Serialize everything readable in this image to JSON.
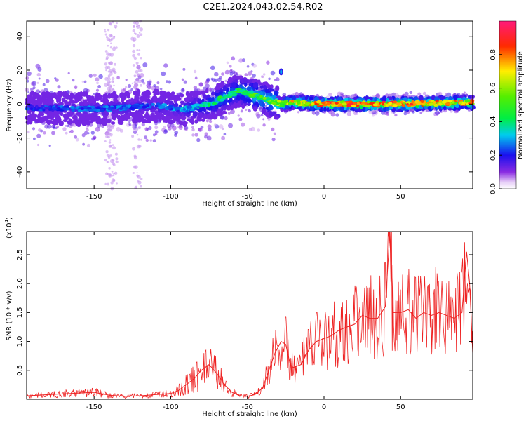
{
  "title": "C2E1.2024.043.02.54.R02",
  "colors": {
    "trace": "#ee2222",
    "axis": "#000000",
    "background": "#ffffff"
  },
  "chart_data": [
    {
      "type": "heatmap",
      "xlabel": "Height of straight line (km)",
      "ylabel": "Frequency (Hz)",
      "xlim": [
        -194,
        97
      ],
      "ylim": [
        -50,
        49
      ],
      "xticks": [
        -150,
        -100,
        -50,
        0,
        50
      ],
      "yticks": [
        -40,
        -20,
        0,
        20,
        40
      ],
      "colorbar": {
        "label": "Normalized spectral amplitude",
        "range": [
          0,
          1
        ],
        "ticks": [
          0.0,
          0.2,
          0.4,
          0.6,
          0.8
        ],
        "tick_labels": [
          "0.0",
          "0.2",
          "0.4",
          "0.6",
          "0.8"
        ],
        "colormap": "rainbow (white-violet-blue-cyan-green-yellow-red-magenta)"
      },
      "ridge": {
        "x": [
          -194,
          -150,
          -110,
          -90,
          -75,
          -65,
          -55,
          -45,
          -35,
          -28,
          -20,
          0,
          50,
          97
        ],
        "frequency": [
          -2,
          -3,
          -1,
          -3,
          0,
          4,
          8,
          5,
          2,
          0,
          1,
          0,
          0,
          1
        ],
        "amplitude": [
          0.25,
          0.3,
          0.3,
          0.35,
          0.45,
          0.5,
          0.5,
          0.6,
          0.62,
          0.7,
          0.8,
          0.95,
          0.95,
          0.85
        ]
      },
      "features": [
        {
          "x": -28,
          "frequency": 19,
          "amplitude": 0.3
        },
        {
          "x": -138,
          "frequency": 0,
          "amplitude": 0.05,
          "note": ""
        }
      ]
    },
    {
      "type": "line",
      "xlabel": "Height of straight line (km)",
      "ylabel": "SNR (10 * v/v)",
      "scale_label": "(x10",
      "scale_exponent": "4",
      "xlim": [
        -194,
        97
      ],
      "ylim": [
        0,
        2.9
      ],
      "xticks": [
        -150,
        -100,
        -50,
        0,
        50
      ],
      "yticks": [
        0.5,
        1.0,
        1.5,
        2.0,
        2.5
      ],
      "ytick_labels": [
        "0.5",
        "1.0",
        "1.5",
        "2.0",
        "2.5"
      ],
      "series": [
        {
          "x": [
            -194,
            -180,
            -165,
            -150,
            -140,
            -130,
            -120,
            -110,
            -100,
            -95,
            -90,
            -85,
            -80,
            -75,
            -70,
            -65,
            -60,
            -55,
            -50,
            -45,
            -40,
            -36,
            -32,
            -28,
            -25,
            -22,
            -20,
            -15,
            -10,
            -5,
            0,
            5,
            10,
            15,
            20,
            25,
            30,
            35,
            40,
            43,
            45,
            50,
            55,
            60,
            65,
            70,
            75,
            80,
            85,
            90,
            93,
            95,
            97
          ],
          "values": [
            0.06,
            0.08,
            0.1,
            0.12,
            0.07,
            0.05,
            0.06,
            0.08,
            0.1,
            0.15,
            0.25,
            0.35,
            0.5,
            0.6,
            0.45,
            0.25,
            0.12,
            0.06,
            0.05,
            0.08,
            0.2,
            0.5,
            0.8,
            1.0,
            0.95,
            0.6,
            0.55,
            0.6,
            0.85,
            1.0,
            1.05,
            1.1,
            1.2,
            1.25,
            1.3,
            1.45,
            1.4,
            1.4,
            1.6,
            2.9,
            1.5,
            1.5,
            1.55,
            1.4,
            1.5,
            1.45,
            1.5,
            1.45,
            1.4,
            1.5,
            2.55,
            2.0,
            0.8
          ]
        }
      ]
    }
  ]
}
